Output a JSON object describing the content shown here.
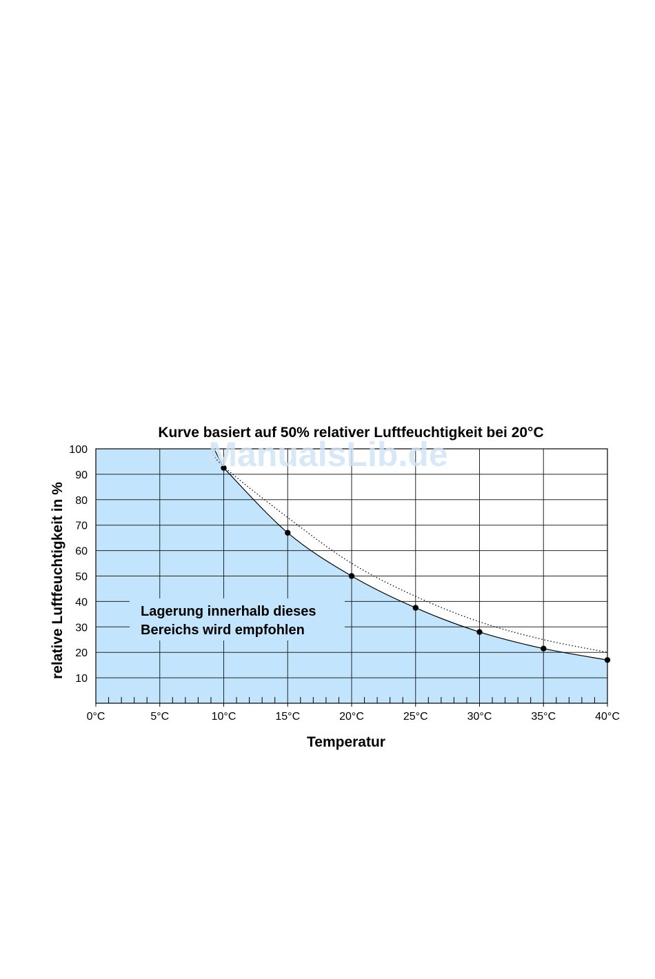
{
  "colors": {
    "region_fill": "#c3e4fd",
    "grid": "#222222",
    "watermark": "#cfe3f5"
  },
  "watermark": "ManualsLib.de",
  "chart_data": {
    "type": "line",
    "title": "Kurve basiert auf 50% relativer Luftfeuchtigkeit bei 20°C",
    "xlabel": "Temperatur",
    "ylabel": "relative Luftfeuchtigkeit in %",
    "xlim": [
      0,
      40
    ],
    "ylim": [
      0,
      100
    ],
    "x_ticks": [
      0,
      5,
      10,
      15,
      20,
      25,
      30,
      35,
      40
    ],
    "x_tick_labels": [
      "0°C",
      "5°C",
      "10°C",
      "15°C",
      "20°C",
      "25°C",
      "30°C",
      "35°C",
      "40°C"
    ],
    "x_minor_step": 1,
    "y_ticks": [
      10,
      20,
      30,
      40,
      50,
      60,
      70,
      80,
      90,
      100
    ],
    "y_tick_labels": [
      "10",
      "20",
      "30",
      "40",
      "50",
      "60",
      "70",
      "80",
      "90",
      "100"
    ],
    "grid": true,
    "series": [
      {
        "style": "solid-with-markers",
        "x": [
          10,
          15,
          20,
          25,
          30,
          35,
          40
        ],
        "y": [
          92.5,
          67,
          50,
          37.5,
          28,
          21.5,
          17
        ]
      },
      {
        "style": "dotted",
        "x": [
          9,
          10,
          15,
          20,
          25,
          30,
          35,
          40
        ],
        "y": [
          100,
          93,
          73,
          55,
          42,
          32,
          25,
          20
        ]
      }
    ],
    "region": {
      "description": "area below solid curve",
      "label_lines": [
        "Lagerung innerhalb dieses",
        "Bereichs wird  empfohlen"
      ]
    }
  }
}
